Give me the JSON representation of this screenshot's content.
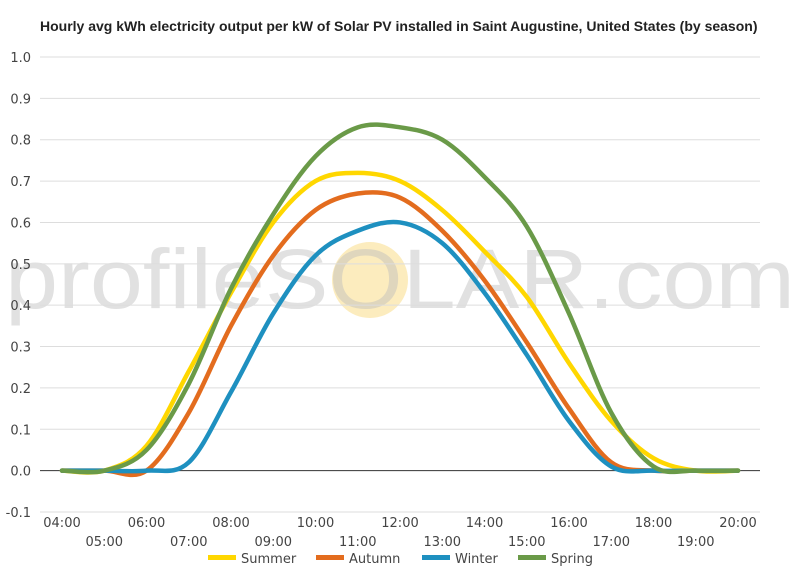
{
  "chart_data": {
    "type": "line",
    "title": "Hourly avg kWh electricity output per kW of Solar PV installed in Saint Augustine, United States (by season)",
    "xlabel": "",
    "ylabel": "",
    "watermark": "profileSOLAR.com",
    "x": [
      "04:00",
      "05:00",
      "06:00",
      "07:00",
      "08:00",
      "09:00",
      "10:00",
      "11:00",
      "12:00",
      "13:00",
      "14:00",
      "15:00",
      "16:00",
      "17:00",
      "18:00",
      "19:00",
      "20:00"
    ],
    "ylim": [
      -0.1,
      1.0
    ],
    "yticks": [
      "1.0",
      "0.9",
      "0.8",
      "0.7",
      "0.6",
      "0.5",
      "0.4",
      "0.3",
      "0.2",
      "0.1",
      "0.0",
      "-0.1"
    ],
    "grid": true,
    "legend_position": "bottom",
    "series": [
      {
        "name": "Summer",
        "color": "#FFD700",
        "values": [
          0.0,
          0.0,
          0.06,
          0.24,
          0.43,
          0.6,
          0.7,
          0.72,
          0.7,
          0.63,
          0.53,
          0.42,
          0.26,
          0.12,
          0.03,
          0.0,
          0.0
        ]
      },
      {
        "name": "Autumn",
        "color": "#E36C1E",
        "values": [
          0.0,
          0.0,
          0.0,
          0.14,
          0.35,
          0.52,
          0.63,
          0.67,
          0.66,
          0.58,
          0.46,
          0.31,
          0.15,
          0.02,
          0.0,
          0.0,
          0.0
        ]
      },
      {
        "name": "Winter",
        "color": "#1E90C0",
        "values": [
          0.0,
          0.0,
          0.0,
          0.02,
          0.19,
          0.38,
          0.52,
          0.58,
          0.6,
          0.55,
          0.43,
          0.28,
          0.12,
          0.01,
          0.0,
          0.0,
          0.0
        ]
      },
      {
        "name": "Spring",
        "color": "#6A9A48",
        "values": [
          0.0,
          0.0,
          0.05,
          0.21,
          0.44,
          0.62,
          0.76,
          0.83,
          0.83,
          0.8,
          0.71,
          0.59,
          0.38,
          0.14,
          0.01,
          0.0,
          0.0
        ]
      }
    ]
  }
}
